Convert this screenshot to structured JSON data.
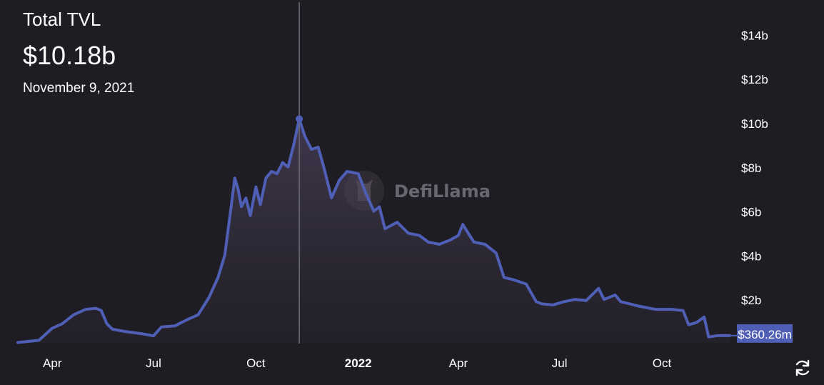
{
  "header": {
    "title": "Total TVL",
    "value": "$10.18b",
    "date": "November 9, 2021"
  },
  "watermark": {
    "text": "DefiLlama",
    "icon": "llama-logo-icon"
  },
  "refresh_icon": "refresh-icon",
  "colors": {
    "background": "#1f1d24",
    "line": "#4f5fb6",
    "crosshair": "#6b6b74",
    "label_bg": "#4f5fb6",
    "text": "#ffffff"
  },
  "chart_data": {
    "type": "area",
    "title": "Total TVL",
    "xlabel": "",
    "ylabel": "",
    "x_ticks": [
      "Apr",
      "Jul",
      "Oct",
      "2022",
      "Apr",
      "Jul",
      "Oct"
    ],
    "y_ticks": [
      "$2b",
      "$4b",
      "$6b",
      "$8b",
      "$10b",
      "$12b",
      "$14b"
    ],
    "ylim": [
      0,
      14.5
    ],
    "grid": false,
    "legend": "none",
    "hover": {
      "x": "2021-11-09",
      "value": "$10.18b"
    },
    "last_value_label": "$360.26m",
    "series": [
      {
        "x": [
          "2021-03-01",
          "2021-03-20",
          "2021-04-01",
          "2021-04-10",
          "2021-04-20",
          "2021-05-01",
          "2021-05-10",
          "2021-05-15",
          "2021-05-20",
          "2021-05-25",
          "2021-06-05",
          "2021-06-20",
          "2021-07-01",
          "2021-07-08",
          "2021-07-20",
          "2021-08-01",
          "2021-08-10",
          "2021-08-20",
          "2021-08-28",
          "2021-09-03",
          "2021-09-10",
          "2021-09-12",
          "2021-09-15",
          "2021-09-18",
          "2021-09-22",
          "2021-09-26",
          "2021-10-01",
          "2021-10-05",
          "2021-10-10",
          "2021-10-15",
          "2021-10-20",
          "2021-10-25",
          "2021-10-30",
          "2021-11-04",
          "2021-11-09",
          "2021-11-14",
          "2021-11-20",
          "2021-11-26",
          "2021-12-01",
          "2021-12-08",
          "2021-12-15",
          "2021-12-22",
          "2022-01-01",
          "2022-01-08",
          "2022-01-15",
          "2022-01-20",
          "2022-01-25",
          "2022-02-05",
          "2022-02-15",
          "2022-02-25",
          "2022-03-05",
          "2022-03-15",
          "2022-03-25",
          "2022-04-01",
          "2022-04-05",
          "2022-04-15",
          "2022-04-25",
          "2022-05-05",
          "2022-05-12",
          "2022-05-20",
          "2022-06-01",
          "2022-06-10",
          "2022-06-15",
          "2022-06-25",
          "2022-07-05",
          "2022-07-15",
          "2022-07-25",
          "2022-08-05",
          "2022-08-10",
          "2022-08-20",
          "2022-08-25",
          "2022-09-10",
          "2022-09-25",
          "2022-10-10",
          "2022-10-20",
          "2022-10-25",
          "2022-11-01",
          "2022-11-08",
          "2022-11-12",
          "2022-11-20",
          "2022-12-01"
        ],
        "values": [
          0.05,
          0.15,
          0.7,
          0.9,
          1.3,
          1.55,
          1.6,
          1.5,
          0.9,
          0.65,
          0.55,
          0.45,
          0.35,
          0.75,
          0.8,
          1.1,
          1.3,
          2.1,
          3.0,
          4.0,
          6.7,
          7.5,
          7.0,
          6.2,
          6.6,
          5.8,
          7.1,
          6.3,
          7.5,
          7.8,
          7.7,
          8.2,
          8.0,
          9.0,
          10.18,
          9.4,
          8.8,
          8.9,
          8.0,
          6.6,
          7.4,
          7.8,
          7.7,
          6.8,
          6.0,
          6.2,
          5.2,
          5.5,
          5.0,
          4.9,
          4.6,
          4.5,
          4.7,
          4.9,
          5.4,
          4.6,
          4.5,
          4.1,
          3.0,
          2.9,
          2.7,
          1.9,
          1.8,
          1.75,
          1.9,
          2.0,
          1.95,
          2.5,
          2.0,
          2.2,
          1.9,
          1.7,
          1.55,
          1.55,
          1.5,
          0.85,
          0.95,
          1.2,
          0.3,
          0.36,
          0.36
        ]
      }
    ]
  }
}
